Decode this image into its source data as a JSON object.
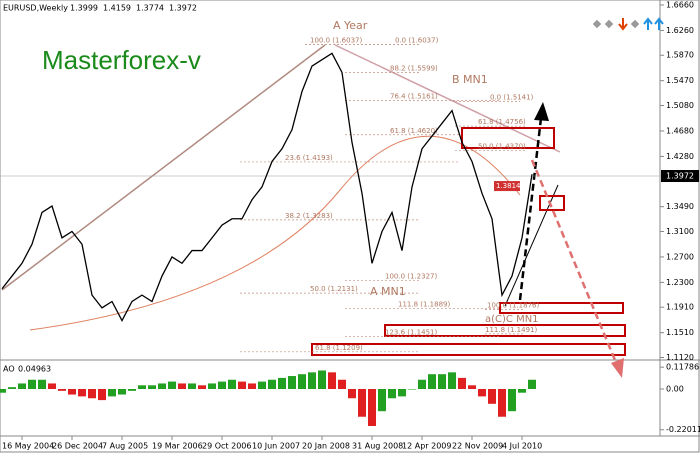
{
  "chart_data": [
    {
      "type": "line",
      "title": "EURUSD,Weekly",
      "ohlc": [
        1.3999,
        1.4159,
        1.3774,
        1.3972
      ],
      "watermark": "Masterforex-v",
      "categories": [
        null,
        null,
        "16 May 2004",
        null,
        null,
        null,
        null,
        "26 Dec 2004",
        null,
        null,
        null,
        null,
        "7 Aug 2005",
        null,
        null,
        null,
        null,
        "19 Mar 2006",
        null,
        null,
        null,
        null,
        "29 Oct 2006",
        null,
        null,
        null,
        null,
        "10 Jun 2007",
        null,
        null,
        null,
        null,
        "20 Jan 2008",
        null,
        null,
        null,
        null,
        "31 Aug 2008",
        null,
        null,
        null,
        null,
        "12 Apr 2009",
        null,
        null,
        null,
        null,
        "22 Nov 2009",
        null,
        null,
        null,
        null,
        "4 Jul 2010",
        null
      ],
      "series": [
        {
          "name": "EURUSD",
          "color": "#000000",
          "values": [
            1.22,
            1.24,
            1.26,
            1.29,
            1.34,
            1.35,
            1.3,
            1.31,
            1.29,
            1.21,
            1.19,
            1.2,
            1.17,
            1.2,
            1.21,
            1.2,
            1.24,
            1.27,
            1.26,
            1.28,
            1.28,
            1.3,
            1.32,
            1.33,
            1.33,
            1.36,
            1.38,
            1.42,
            1.44,
            1.47,
            1.53,
            1.57,
            1.58,
            1.59,
            1.56,
            1.45,
            1.37,
            1.26,
            1.31,
            1.34,
            1.28,
            1.38,
            1.44,
            1.46,
            1.48,
            1.5,
            1.45,
            1.42,
            1.37,
            1.33,
            1.21,
            1.24,
            1.3,
            1.4
          ]
        }
      ],
      "last_price": 1.3972,
      "marker_price": 1.3814,
      "ylim": [
        1.1112,
        1.6738
      ],
      "yticks": [
        {
          "value": 1.666,
          "label": "1.6660"
        },
        {
          "value": 1.626,
          "label": "1.6260"
        },
        {
          "value": 1.587,
          "label": "1.5870"
        },
        {
          "value": 1.547,
          "label": "1.5470"
        },
        {
          "value": 1.508,
          "label": "1.5080"
        },
        {
          "value": 1.468,
          "label": "1.4680"
        },
        {
          "value": 1.428,
          "label": "1.4280"
        },
        {
          "value": 1.349,
          "label": "1.3490"
        },
        {
          "value": 1.31,
          "label": "1.3100"
        },
        {
          "value": 1.27,
          "label": "1.2700"
        },
        {
          "value": 1.23,
          "label": "1.2300"
        },
        {
          "value": 1.191,
          "label": "1.1910"
        },
        {
          "value": 1.151,
          "label": "1.1510"
        },
        {
          "value": 1.112,
          "label": "1.1120"
        }
      ],
      "fib_levels": [
        {
          "label": "100.0 (1.6037)",
          "value": 1.6037
        },
        {
          "label": "0.0 (1.6037)",
          "value": 1.6037
        },
        {
          "label": "88.2 (1.5599)",
          "value": 1.5599
        },
        {
          "label": "76.4 (1.5161)",
          "value": 1.5161
        },
        {
          "label": "0.0 (1.5141)",
          "value": 1.5141
        },
        {
          "label": "61.8 (1.4620)",
          "value": 1.462
        },
        {
          "label": "61.8 (1.4756)",
          "value": 1.4756
        },
        {
          "label": "50.0 (1.4370)",
          "value": 1.437
        },
        {
          "label": "23.6 (1.4193)",
          "value": 1.4193
        },
        {
          "label": "38.2 (1.3283)",
          "value": 1.3283
        },
        {
          "label": "50.0 (1.2131)",
          "value": 1.2131
        },
        {
          "label": "100.0 (1.2327)",
          "value": 1.2327
        },
        {
          "label": "111.8 (1.1889)",
          "value": 1.1889
        },
        {
          "label": "100.0 (1.1876)",
          "value": 1.1876
        },
        {
          "label": "123.6 (1.1451)",
          "value": 1.1451
        },
        {
          "label": "111.8 (1.1491)",
          "value": 1.1491
        },
        {
          "label": "61.8 (1.1209)",
          "value": 1.1209
        }
      ],
      "wave_labels": [
        "A Year",
        "B MN1",
        "A MN1",
        "a(C)C MN1"
      ]
    },
    {
      "type": "bar",
      "title": "AO",
      "last_value": 0.04963,
      "colors": {
        "up": "#22a022",
        "down": "#e02020"
      },
      "values": [
        -0.02,
        0.01,
        0.03,
        0.05,
        0.05,
        0.03,
        -0.01,
        -0.03,
        -0.04,
        -0.05,
        -0.06,
        -0.04,
        -0.03,
        -0.01,
        0.02,
        0.02,
        0.03,
        0.04,
        0.03,
        0.03,
        0.02,
        0.03,
        0.04,
        0.05,
        0.04,
        0.03,
        0.04,
        0.05,
        0.06,
        0.07,
        0.08,
        0.09,
        0.1,
        0.09,
        0.05,
        -0.05,
        -0.15,
        -0.2,
        -0.12,
        -0.05,
        -0.04,
        0.0,
        0.05,
        0.08,
        0.08,
        0.09,
        0.06,
        0.02,
        -0.04,
        -0.08,
        -0.15,
        -0.12,
        -0.02,
        0.05
      ],
      "ylim": [
        -0.2378,
        0.1405
      ],
      "yticks": [
        0.11786,
        {
          "value": 0,
          "label": "0.00"
        },
        -0.22011
      ]
    }
  ]
}
